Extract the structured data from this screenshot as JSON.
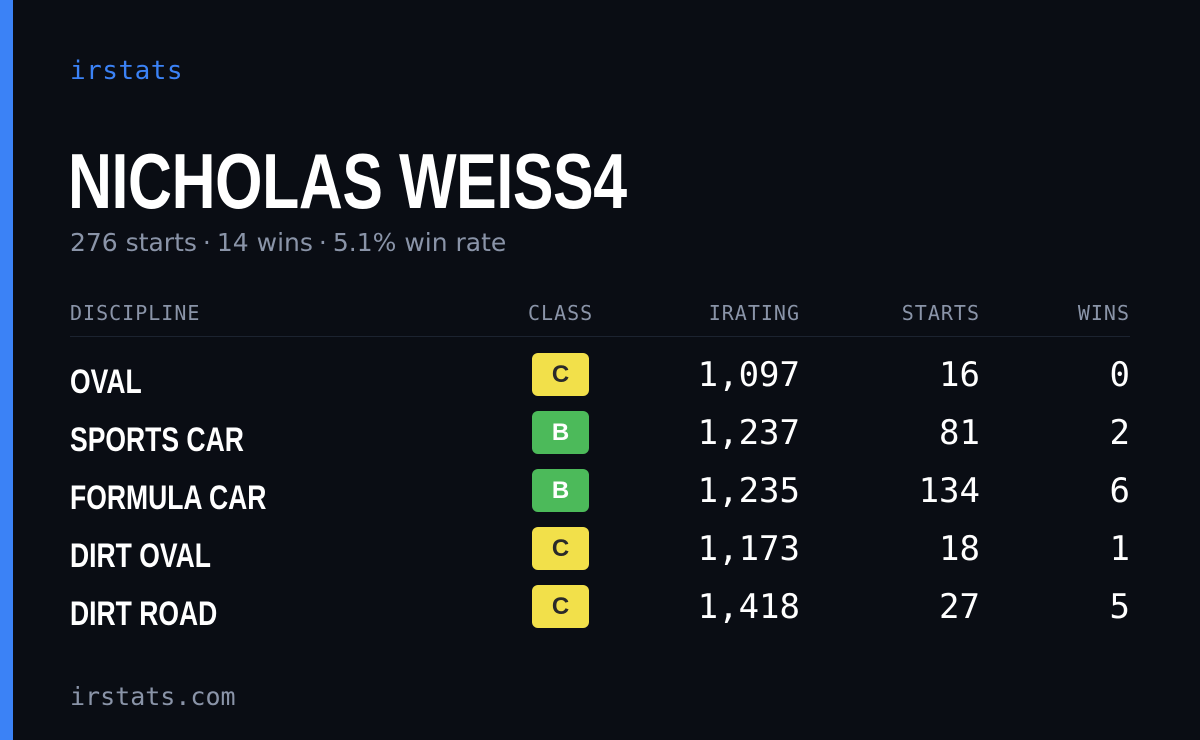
{
  "brand": "irstats",
  "driver": {
    "name": "NICHOLAS WEISS4"
  },
  "summary": {
    "starts": "276 starts",
    "wins": "14 wins",
    "win_rate": "5.1% win rate",
    "separator": "·"
  },
  "table": {
    "headers": {
      "discipline": "DISCIPLINE",
      "class": "CLASS",
      "irating": "IRATING",
      "starts": "STARTS",
      "wins": "WINS"
    },
    "rows": [
      {
        "discipline": "OVAL",
        "class": "C",
        "irating": "1,097",
        "starts": "16",
        "wins": "0"
      },
      {
        "discipline": "SPORTS CAR",
        "class": "B",
        "irating": "1,237",
        "starts": "81",
        "wins": "2"
      },
      {
        "discipline": "FORMULA CAR",
        "class": "B",
        "irating": "1,235",
        "starts": "134",
        "wins": "6"
      },
      {
        "discipline": "DIRT OVAL",
        "class": "C",
        "irating": "1,173",
        "starts": "18",
        "wins": "1"
      },
      {
        "discipline": "DIRT ROAD",
        "class": "C",
        "irating": "1,418",
        "starts": "27",
        "wins": "5"
      }
    ]
  },
  "footer": "irstats.com",
  "colors": {
    "background": "#0a0d14",
    "accent": "#3b82f6",
    "class_c": "#f2e04a",
    "class_b": "#4cba5a",
    "muted_text": "#8a94a8"
  }
}
